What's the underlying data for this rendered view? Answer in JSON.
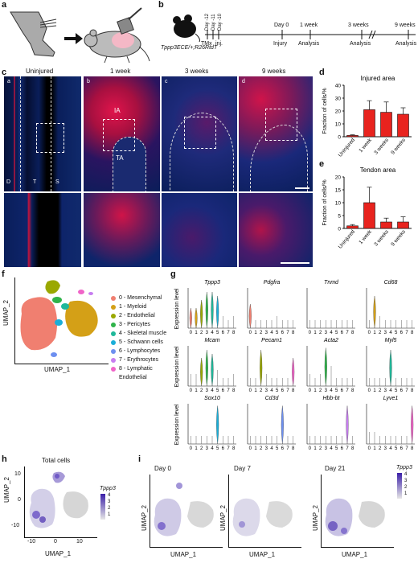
{
  "panels": {
    "a": "a",
    "b": "b",
    "c": "c",
    "d": "d",
    "e": "e",
    "f": "f",
    "g": "g",
    "h": "h",
    "i": "i"
  },
  "b": {
    "genotype": "Tppp3ECE/+;R26RtdT",
    "days_pre": [
      "Day -12",
      "Day -11",
      "Day -10"
    ],
    "tmx": "TMx",
    "inj": "inj.",
    "injury": "Injury",
    "timepoints": [
      {
        "top": "Day 0",
        "bottom": "Analysis"
      },
      {
        "top": "1 week",
        "bottom": "Analysis"
      },
      {
        "top": "3 weeks",
        "bottom": "Analysis"
      },
      {
        "top": "9 weeks",
        "bottom": "Analysis"
      }
    ]
  },
  "c": {
    "columns": [
      "Uninjured",
      "1 week",
      "3 weeks",
      "9 weeks"
    ],
    "sub": [
      "a",
      "b",
      "c",
      "d"
    ],
    "regions": {
      "IA": "IA",
      "TA": "TA",
      "D": "D",
      "T": "T",
      "S": "S"
    }
  },
  "chart_data": [
    {
      "type": "bar",
      "title": "Injured area",
      "ylabel": "Fraction of cells/%",
      "categories": [
        "Uninjured",
        "1 week",
        "3 weeks",
        "9 weeks"
      ],
      "values": [
        1,
        21,
        19,
        17.5
      ],
      "errors": [
        0.5,
        7,
        8,
        5
      ],
      "ylim": [
        0,
        40
      ],
      "yticks": [
        0,
        10,
        20,
        30,
        40
      ],
      "color": "#e8231e"
    },
    {
      "type": "bar",
      "title": "Tendon area",
      "ylabel": "Fraction of cells/%",
      "categories": [
        "Uninjured",
        "1 week",
        "3 weeks",
        "9 weeks"
      ],
      "values": [
        1,
        10,
        2.5,
        2.5
      ],
      "errors": [
        0.5,
        6,
        1.5,
        2
      ],
      "ylim": [
        0,
        20
      ],
      "yticks": [
        0,
        5,
        10,
        15,
        20
      ],
      "color": "#e8231e"
    }
  ],
  "f": {
    "xlabel": "UMAP_1",
    "ylabel": "UMAP_2",
    "clusters": [
      {
        "label": "0 - Mesenchymal",
        "color": "#f07f70"
      },
      {
        "label": "1 - Myeloid",
        "color": "#d4a017"
      },
      {
        "label": "2 - Endothelial",
        "color": "#9aa800"
      },
      {
        "label": "3 - Pericytes",
        "color": "#2fb34a"
      },
      {
        "label": "4 - Skeletal muscle",
        "color": "#1fb89a"
      },
      {
        "label": "5 - Schwann cells",
        "color": "#1aaed8"
      },
      {
        "label": "6 - Lymphocytes",
        "color": "#6d8ff0"
      },
      {
        "label": "7 - Erythrocytes",
        "color": "#c77df0"
      },
      {
        "label": "8 - Lymphatic",
        "color": "#f064c8"
      }
    ],
    "cluster8_line2": "Endothelial"
  },
  "g": {
    "ylabel": "Expression level",
    "xticks": [
      "0",
      "1",
      "2",
      "3",
      "4",
      "5",
      "6",
      "7",
      "8"
    ],
    "genes": [
      "Tppp3",
      "Pdgfra",
      "Tnmd",
      "Cd68",
      "Mcam",
      "Pecam1",
      "Acta2",
      "Myl5",
      "Sox10",
      "Cd3d",
      "Hbb-bt",
      "Lyve1"
    ]
  },
  "h": {
    "title": "Total cells",
    "xlabel": "UMAP_1",
    "ylabel": "UMAP_2",
    "xticks": [
      "-10",
      "0",
      "10"
    ],
    "yticks": [
      "10",
      "0",
      "-10"
    ],
    "legend_title": "Tppp3",
    "legend_ticks": [
      "4",
      "3",
      "2",
      "1"
    ]
  },
  "i": {
    "titles": [
      "Day 0",
      "Day 7",
      "Day 21"
    ],
    "xlabel": "UMAP_1",
    "ylabel": "UMAP_2",
    "legend_title": "Tppp3",
    "legend_ticks": [
      "4",
      "3",
      "2",
      "1"
    ]
  }
}
